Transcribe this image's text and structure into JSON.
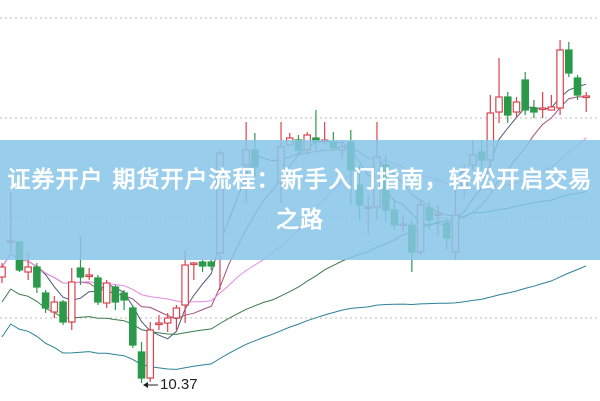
{
  "banner": {
    "title": "证券开户 期货开户流程：新手入门指南，轻松开启交易之路"
  },
  "chart_data": {
    "type": "candlestick",
    "grid": "horizontal-dotted",
    "low_annotation": "10.37",
    "colors": {
      "up": "#d9434e",
      "down": "#2a9a4a",
      "banner": "#87c6e8",
      "ma5": "#4a5a7a",
      "ma10": "#a0507a",
      "ma20": "#e58ae0",
      "ma30": "#3c7a4a",
      "ma60": "#2a8296"
    },
    "moving_averages": [
      5,
      10,
      20,
      30,
      60
    ],
    "ohlc": [
      [
        11.43,
        11.53,
        11.57,
        11.37
      ],
      [
        11.78,
        11.79,
        12.28,
        11.68
      ],
      [
        11.78,
        11.5,
        11.78,
        11.48
      ],
      [
        11.48,
        11.53,
        11.67,
        11.4
      ],
      [
        11.53,
        11.33,
        11.57,
        11.27
      ],
      [
        11.27,
        11.12,
        11.3,
        11.07
      ],
      [
        11.08,
        11.18,
        11.24,
        11.02
      ],
      [
        11.18,
        10.98,
        11.2,
        10.95
      ],
      [
        10.98,
        11.38,
        11.52,
        10.9
      ],
      [
        11.52,
        11.43,
        11.83,
        11.35
      ],
      [
        11.44,
        11.45,
        11.52,
        11.4
      ],
      [
        11.42,
        11.18,
        11.45,
        11.15
      ],
      [
        11.17,
        11.37,
        11.4,
        11.12
      ],
      [
        11.33,
        11.18,
        11.35,
        11.1
      ],
      [
        11.27,
        11.2,
        11.3,
        11.1
      ],
      [
        11.12,
        10.75,
        11.15,
        10.72
      ],
      [
        10.68,
        10.42,
        10.78,
        10.37
      ],
      [
        10.42,
        10.9,
        10.98,
        10.38
      ],
      [
        10.96,
        10.97,
        11.05,
        10.9
      ],
      [
        10.97,
        11.02,
        11.07,
        10.88
      ],
      [
        11.02,
        11.12,
        11.15,
        10.9
      ],
      [
        11.15,
        11.55,
        11.7,
        10.97
      ],
      [
        11.56,
        11.57,
        11.58,
        11.4
      ],
      [
        11.58,
        11.54,
        11.6,
        11.48
      ],
      [
        11.58,
        11.54,
        11.6,
        11.5
      ],
      [
        11.67,
        12.67,
        12.7,
        11.3
      ],
      null,
      null,
      [
        12.55,
        12.7,
        12.98,
        12.17
      ],
      [
        12.7,
        12.53,
        12.87,
        12.43
      ],
      null,
      null,
      [
        12.37,
        12.73,
        12.98,
        12.17
      ],
      [
        12.75,
        12.82,
        12.87,
        12.75
      ],
      [
        12.8,
        12.7,
        12.85,
        12.65
      ],
      [
        12.7,
        12.85,
        12.88,
        12.65
      ],
      [
        12.82,
        12.78,
        13.1,
        12.7
      ],
      [
        12.79,
        12.8,
        12.98,
        12.75
      ],
      [
        12.78,
        12.72,
        12.88,
        12.7
      ],
      [
        12.7,
        12.73,
        12.8,
        12.62
      ],
      [
        12.78,
        12.5,
        12.9,
        12.15
      ],
      [
        12.35,
        12.15,
        12.55,
        12.0
      ],
      [
        12.12,
        12.13,
        12.25,
        11.85
      ],
      [
        12.13,
        12.63,
        12.98,
        12.0
      ],
      [
        12.55,
        12.1,
        12.65,
        11.98
      ],
      [
        12.1,
        11.95,
        12.2,
        11.9
      ],
      [
        11.95,
        11.96,
        12.05,
        11.88
      ],
      [
        11.95,
        11.68,
        12.0,
        11.48
      ],
      [
        11.68,
        12.15,
        12.2,
        11.65
      ],
      [
        12.12,
        12.0,
        12.18,
        11.9
      ],
      [
        12.05,
        12.06,
        12.15,
        11.85
      ],
      [
        11.97,
        11.82,
        12.02,
        11.7
      ],
      [
        11.68,
        12.05,
        12.37,
        11.6
      ],
      [
        12.35,
        12.48,
        12.55,
        12.22
      ],
      [
        12.55,
        12.65,
        12.8,
        12.5
      ],
      [
        12.68,
        12.6,
        12.8,
        12.5
      ],
      [
        12.6,
        13.07,
        13.25,
        12.52
      ],
      [
        13.08,
        13.23,
        13.62,
        12.97
      ],
      [
        13.23,
        13.05,
        13.28,
        12.97
      ],
      [
        13.08,
        13.18,
        13.23,
        13.02
      ],
      [
        13.4,
        13.1,
        13.48,
        13.05
      ],
      [
        13.12,
        13.08,
        13.2,
        13.02
      ],
      [
        13.11,
        13.12,
        13.28,
        13.02
      ],
      [
        13.1,
        13.13,
        13.25,
        13.1
      ],
      [
        13.12,
        13.7,
        13.8,
        13.05
      ],
      [
        13.7,
        13.47,
        13.78,
        13.43
      ],
      [
        13.42,
        13.25,
        13.45,
        13.2
      ],
      [
        13.23,
        13.24,
        13.28,
        13.08
      ]
    ]
  }
}
